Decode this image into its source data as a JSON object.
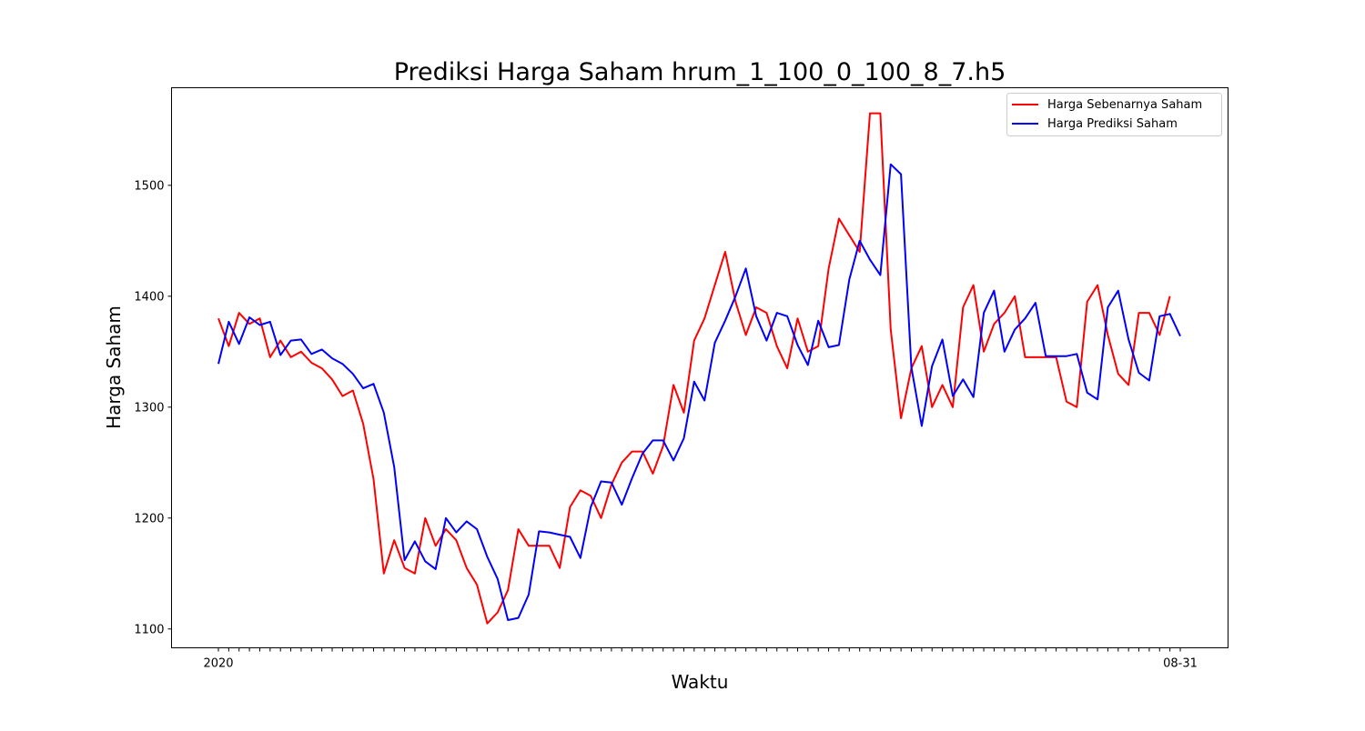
{
  "chart_data": {
    "type": "line",
    "title": "Prediksi Harga Saham hrum_1_100_0_100_8_7.h5",
    "xlabel": "Waktu",
    "ylabel": "Harga Saham",
    "x_tick_labels": {
      "first": "2020",
      "last": "08-31"
    },
    "y_ticks": [
      1100,
      1200,
      1300,
      1400,
      1500
    ],
    "ylim": [
      1083,
      1588
    ],
    "legend_position": "upper right",
    "grid": false,
    "series": [
      {
        "name": "Harga Sebenarnya Saham",
        "color": "#ff0000",
        "values": [
          1380,
          1355,
          1385,
          1375,
          1380,
          1345,
          1360,
          1345,
          1350,
          1340,
          1335,
          1325,
          1310,
          1315,
          1285,
          1235,
          1150,
          1180,
          1155,
          1150,
          1200,
          1175,
          1190,
          1180,
          1155,
          1140,
          1105,
          1115,
          1135,
          1190,
          1175,
          1175,
          1175,
          1155,
          1210,
          1225,
          1220,
          1200,
          1230,
          1250,
          1260,
          1260,
          1240,
          1265,
          1320,
          1295,
          1360,
          1380,
          1410,
          1440,
          1395,
          1365,
          1390,
          1385,
          1355,
          1335,
          1380,
          1350,
          1355,
          1425,
          1470,
          1455,
          1440,
          1565,
          1565,
          1370,
          1290,
          1335,
          1355,
          1300,
          1320,
          1300,
          1390,
          1410,
          1350,
          1375,
          1385,
          1400,
          1345,
          1345,
          1345,
          1345,
          1305,
          1300,
          1395,
          1410,
          1365,
          1330,
          1320,
          1385,
          1385,
          1365,
          1400
        ]
      },
      {
        "name": "Harga Prediksi Saham",
        "color": "#0000ff",
        "values": [
          1339,
          1377,
          1357,
          1381,
          1374,
          1377,
          1347,
          1360,
          1361,
          1348,
          1352,
          1344,
          1339,
          1330,
          1317,
          1321,
          1295,
          1246,
          1162,
          1179,
          1161,
          1154,
          1200,
          1187,
          1197,
          1190,
          1165,
          1145,
          1108,
          1110,
          1131,
          1188,
          1187,
          1185,
          1183,
          1164,
          1210,
          1233,
          1232,
          1212,
          1236,
          1258,
          1270,
          1270,
          1252,
          1272,
          1323,
          1306,
          1358,
          1378,
          1400,
          1425,
          1382,
          1360,
          1385,
          1382,
          1356,
          1338,
          1378,
          1354,
          1356,
          1415,
          1450,
          1433,
          1419,
          1519,
          1510,
          1336,
          1283,
          1337,
          1361,
          1310,
          1325,
          1309,
          1385,
          1405,
          1350,
          1370,
          1380,
          1394,
          1346,
          1346,
          1346,
          1348,
          1313,
          1307,
          1390,
          1405,
          1361,
          1331,
          1324,
          1382,
          1384,
          1364
        ]
      }
    ]
  }
}
